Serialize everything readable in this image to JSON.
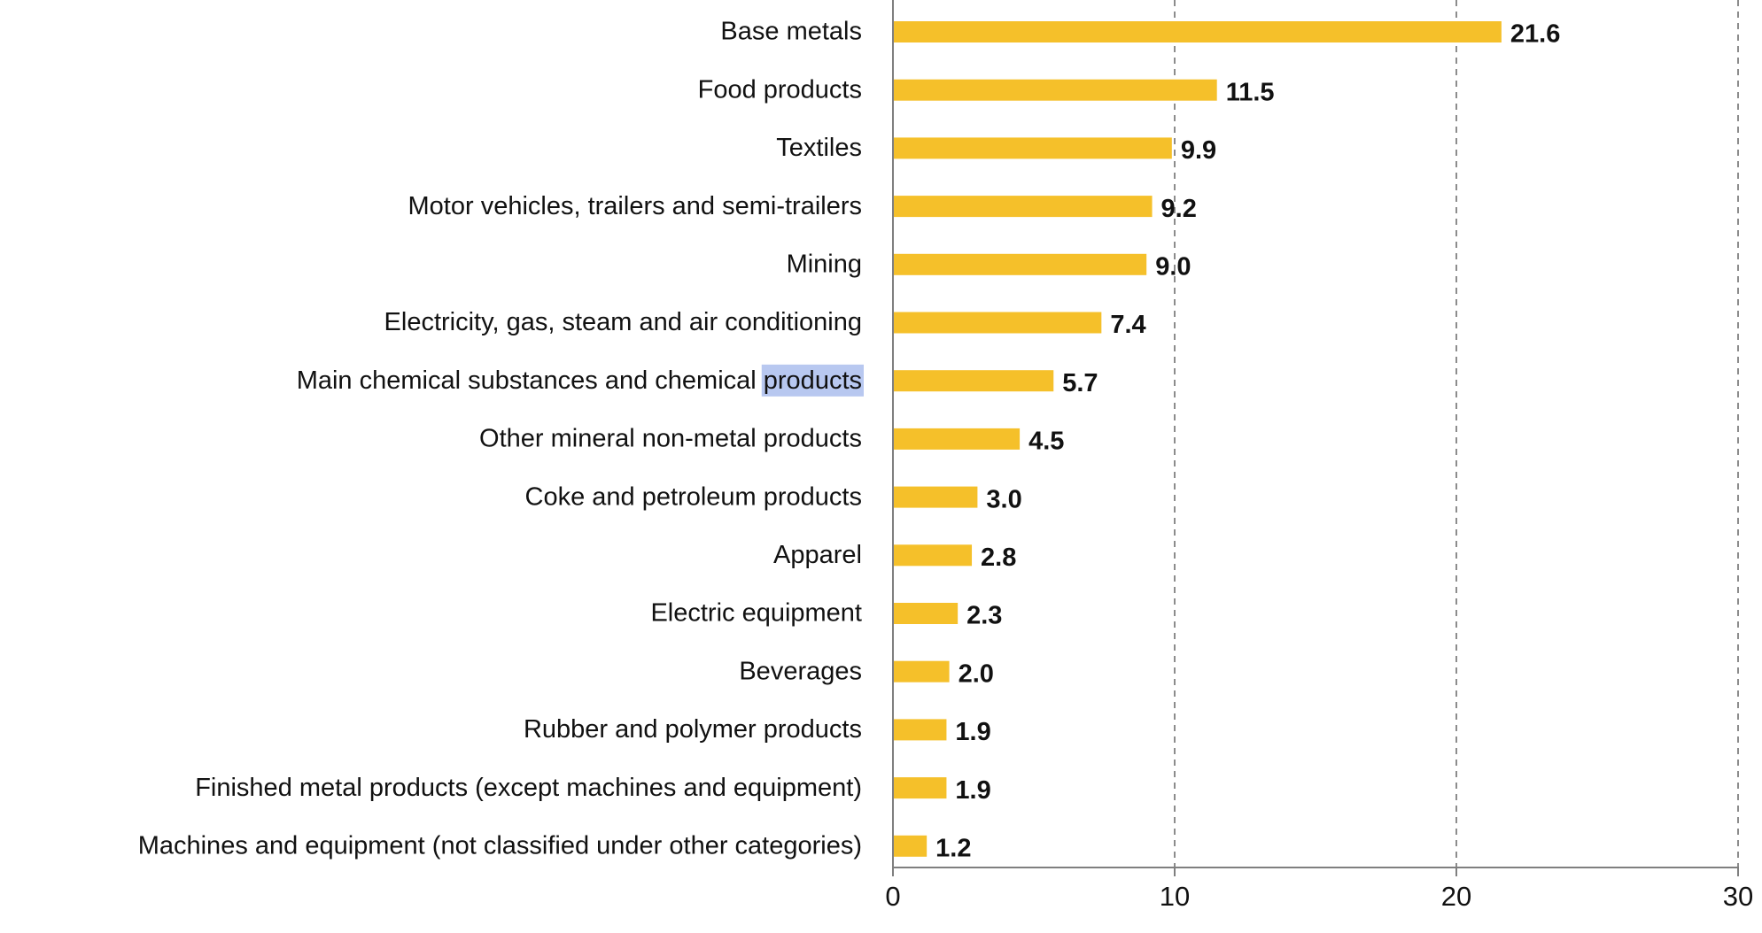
{
  "chart_data": {
    "type": "bar",
    "orientation": "horizontal",
    "title": "",
    "xlabel": "",
    "ylabel": "",
    "xlim": [
      0,
      30
    ],
    "x_ticks": [
      0,
      10,
      20,
      30
    ],
    "grid": "vertical dashed",
    "categories": [
      "Base metals",
      "Food products",
      "Textiles",
      "Motor vehicles, trailers and semi-trailers",
      "Mining",
      "Electricity, gas, steam and air conditioning",
      "Main chemical substances and chemical products",
      "Other mineral non-metal products",
      "Coke and petroleum products",
      "Apparel",
      "Electric equipment",
      "Beverages",
      "Rubber and polymer products",
      "Finished metal products (except machines and equipment)",
      "Machines and equipment (not classified under other categories)"
    ],
    "values": [
      21.6,
      11.5,
      9.9,
      9.2,
      9.0,
      7.4,
      5.7,
      4.5,
      3.0,
      2.8,
      2.3,
      2.0,
      1.9,
      1.9,
      1.2
    ],
    "value_labels": [
      "21.6",
      "11.5",
      "9.9",
      "9.2",
      "9.0",
      "7.4",
      "5.7",
      "4.5",
      "3.0",
      "2.8",
      "2.3",
      "2.0",
      "1.9",
      "1.9",
      "1.2"
    ],
    "colors": {
      "bar": "#f5c02a",
      "axis": "#7f7f7f",
      "grid": "#8c8c8c",
      "selection_highlight": "#b8c8f0"
    },
    "selection": {
      "category_index": 6,
      "text": "products"
    }
  }
}
